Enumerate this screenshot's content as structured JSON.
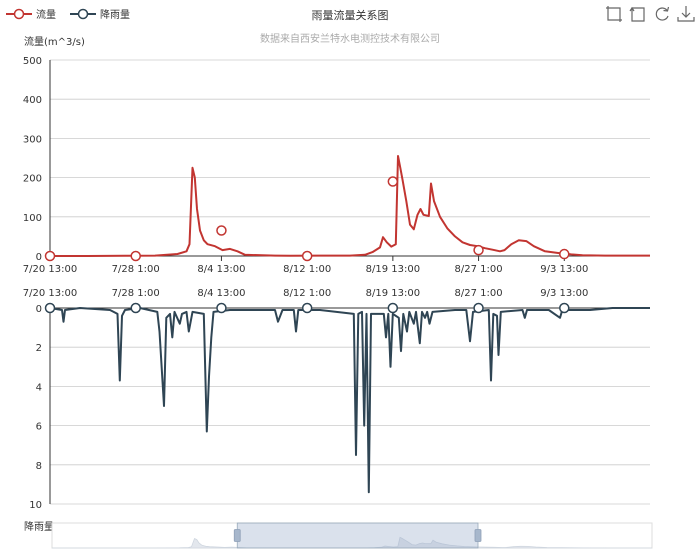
{
  "title": "雨量流量关系图",
  "subtitle": "数据来自西安兰特水电测控技术有限公司",
  "legend": [
    {
      "name": "流量",
      "color": "#c23531"
    },
    {
      "name": "降雨量",
      "color": "#2f4554"
    }
  ],
  "toolbox": [
    "zoom-icon",
    "zoom-reset-icon",
    "restore-icon",
    "download-icon"
  ],
  "chart_data": [
    {
      "type": "line",
      "name": "流量",
      "ylabel": "流量(m^3/s)",
      "ylim": [
        0,
        500
      ],
      "yticks": [
        0,
        100,
        200,
        300,
        400,
        500
      ],
      "x_tick_labels": [
        "7/20 13:00",
        "7/28 1:00",
        "8/4 13:00",
        "8/12 1:00",
        "8/19 13:00",
        "8/27 1:00",
        "9/3 13:00"
      ],
      "color": "#c23531",
      "points": [
        [
          0,
          0
        ],
        [
          5,
          0
        ],
        [
          10,
          0.5
        ],
        [
          14,
          1
        ],
        [
          17,
          5
        ],
        [
          18.2,
          12
        ],
        [
          18.6,
          30
        ],
        [
          19,
          225
        ],
        [
          19.3,
          200
        ],
        [
          19.6,
          120
        ],
        [
          20,
          65
        ],
        [
          20.5,
          40
        ],
        [
          21,
          30
        ],
        [
          22,
          25
        ],
        [
          23,
          15
        ],
        [
          24,
          18
        ],
        [
          25,
          12
        ],
        [
          26,
          3
        ],
        [
          30,
          1
        ],
        [
          32,
          0.5
        ],
        [
          36,
          1
        ],
        [
          40,
          1
        ],
        [
          42,
          3
        ],
        [
          43,
          10
        ],
        [
          44,
          22
        ],
        [
          44.4,
          48
        ],
        [
          44.9,
          35
        ],
        [
          45.5,
          24
        ],
        [
          46.1,
          30
        ],
        [
          46.4,
          255
        ],
        [
          46.7,
          225
        ],
        [
          47,
          195
        ],
        [
          47.5,
          140
        ],
        [
          48,
          80
        ],
        [
          48.5,
          68
        ],
        [
          49,
          105
        ],
        [
          49.4,
          120
        ],
        [
          49.8,
          105
        ],
        [
          50.5,
          102
        ],
        [
          50.8,
          185
        ],
        [
          51.2,
          140
        ],
        [
          52,
          100
        ],
        [
          53,
          70
        ],
        [
          54,
          50
        ],
        [
          55,
          35
        ],
        [
          56,
          28
        ],
        [
          57,
          25
        ],
        [
          58,
          20
        ],
        [
          59,
          16
        ],
        [
          60,
          12
        ],
        [
          60.6,
          15
        ],
        [
          61.5,
          30
        ],
        [
          62.5,
          40
        ],
        [
          63.5,
          38
        ],
        [
          64.5,
          25
        ],
        [
          66,
          12
        ],
        [
          68,
          7
        ],
        [
          69.5,
          4
        ],
        [
          71,
          2
        ],
        [
          74,
          1
        ],
        [
          80,
          1
        ]
      ],
      "markers": [
        [
          0,
          0
        ],
        [
          11.43,
          0
        ],
        [
          22.86,
          65
        ],
        [
          34.29,
          0
        ],
        [
          45.71,
          190
        ],
        [
          57.14,
          15
        ],
        [
          68.57,
          5
        ]
      ]
    },
    {
      "type": "line",
      "name": "降雨量",
      "ylabel": "降雨量(mm)",
      "ylim": [
        0,
        10
      ],
      "y_inverted": true,
      "yticks": [
        0,
        2,
        4,
        6,
        8,
        10
      ],
      "x_tick_labels": [
        "7/20 13:00",
        "7/28 1:00",
        "8/4 13:00",
        "8/12 1:00",
        "8/19 13:00",
        "8/27 1:00",
        "9/3 13:00"
      ],
      "color": "#2f4554",
      "points": [
        [
          0,
          0
        ],
        [
          1.6,
          0.1
        ],
        [
          1.8,
          0.7
        ],
        [
          2,
          0.1
        ],
        [
          4,
          0
        ],
        [
          8,
          0.1
        ],
        [
          9,
          0.3
        ],
        [
          9.3,
          3.7
        ],
        [
          9.6,
          0.4
        ],
        [
          10,
          0.1
        ],
        [
          12,
          0
        ],
        [
          14.3,
          0.2
        ],
        [
          14.6,
          1.2
        ],
        [
          15.2,
          5
        ],
        [
          15.5,
          0.5
        ],
        [
          16,
          0.3
        ],
        [
          16.3,
          1.5
        ],
        [
          16.6,
          0.2
        ],
        [
          17.3,
          0.8
        ],
        [
          17.6,
          0.3
        ],
        [
          18.2,
          0.2
        ],
        [
          18.5,
          1.2
        ],
        [
          19,
          0.2
        ],
        [
          20.5,
          0.3
        ],
        [
          20.9,
          6.3
        ],
        [
          21.2,
          3.5
        ],
        [
          21.5,
          1.5
        ],
        [
          21.8,
          0.2
        ],
        [
          24,
          0.1
        ],
        [
          30,
          0.1
        ],
        [
          30.4,
          0.7
        ],
        [
          31,
          0.1
        ],
        [
          32.5,
          0.1
        ],
        [
          32.8,
          1.2
        ],
        [
          33.1,
          0.1
        ],
        [
          36,
          0.1
        ],
        [
          40.5,
          0.3
        ],
        [
          40.8,
          7.5
        ],
        [
          41.1,
          0.3
        ],
        [
          41.6,
          0.2
        ],
        [
          41.9,
          6.0
        ],
        [
          42.2,
          0.3
        ],
        [
          42.5,
          9.4
        ],
        [
          42.8,
          0.3
        ],
        [
          44.5,
          0.3
        ],
        [
          44.8,
          1.5
        ],
        [
          45.1,
          0.3
        ],
        [
          45.4,
          3.0
        ],
        [
          45.7,
          0.3
        ],
        [
          46.5,
          0.5
        ],
        [
          46.8,
          2.2
        ],
        [
          47.1,
          0.3
        ],
        [
          47.6,
          1.2
        ],
        [
          47.9,
          0.2
        ],
        [
          48.5,
          0.8
        ],
        [
          48.8,
          0.2
        ],
        [
          49.3,
          1.8
        ],
        [
          49.6,
          0.2
        ],
        [
          50,
          0.5
        ],
        [
          50.3,
          0.2
        ],
        [
          50.6,
          0.8
        ],
        [
          51,
          0.2
        ],
        [
          54,
          0.1
        ],
        [
          55.5,
          0.1
        ],
        [
          56,
          1.7
        ],
        [
          56.4,
          0.2
        ],
        [
          58.5,
          0.1
        ],
        [
          58.8,
          3.7
        ],
        [
          59.1,
          0.3
        ],
        [
          59.6,
          0.4
        ],
        [
          59.8,
          2.4
        ],
        [
          60.1,
          0.2
        ],
        [
          63,
          0.1
        ],
        [
          63.3,
          0.5
        ],
        [
          63.6,
          0.1
        ],
        [
          66.5,
          0.1
        ],
        [
          68,
          0.5
        ],
        [
          68.3,
          0.1
        ],
        [
          70,
          0.1
        ],
        [
          72,
          0.1
        ],
        [
          75,
          0
        ],
        [
          80,
          0
        ]
      ],
      "markers": [
        [
          0,
          0
        ],
        [
          11.43,
          0
        ],
        [
          22.86,
          0
        ],
        [
          34.29,
          0
        ],
        [
          45.71,
          0
        ],
        [
          57.14,
          0
        ],
        [
          68.57,
          0
        ]
      ]
    }
  ]
}
